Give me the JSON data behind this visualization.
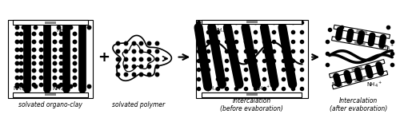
{
  "bg_color": "#ffffff",
  "border_color": "#000000",
  "text_color": "#000000",
  "label1": "solvated organo-clay",
  "label2": "solvated polymer",
  "label3": "Intercalation\n(before evaboration)",
  "label4": "Intercalation\n(after evaboration)",
  "fig_width": 5.0,
  "fig_height": 1.43,
  "dpi": 100
}
